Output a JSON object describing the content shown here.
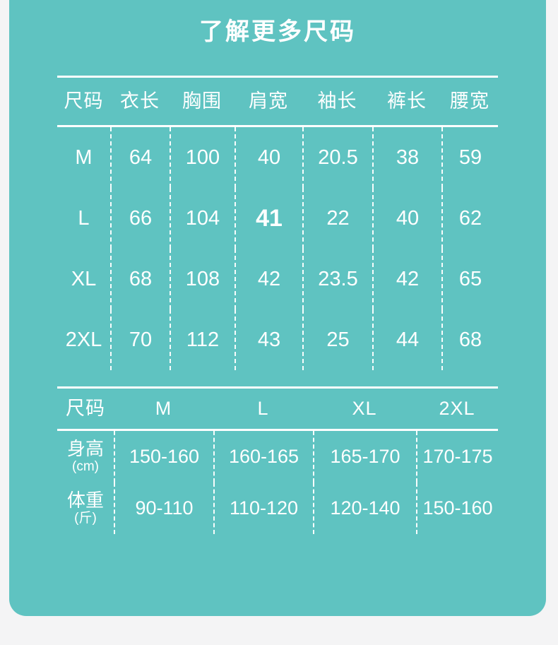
{
  "title": "了解更多尺码",
  "colors": {
    "panel_background": "#5FC3C1",
    "page_background": "#F4F4F5",
    "text": "#FFFFFF",
    "divider": "#FFFFFF"
  },
  "chart_data": [
    {
      "type": "table",
      "title": "了解更多尺码",
      "columns": [
        "尺码",
        "衣长",
        "胸围",
        "肩宽",
        "袖长",
        "裤长",
        "腰宽"
      ],
      "rows": [
        [
          "M",
          "64",
          "100",
          "40",
          "20.5",
          "38",
          "59"
        ],
        [
          "L",
          "66",
          "104",
          "41",
          "22",
          "40",
          "62"
        ],
        [
          "XL",
          "68",
          "108",
          "42",
          "23.5",
          "42",
          "65"
        ],
        [
          "2XL",
          "70",
          "112",
          "43",
          "25",
          "44",
          "68"
        ]
      ]
    },
    {
      "type": "table",
      "columns": [
        "尺码",
        "M",
        "L",
        "XL",
        "2XL"
      ],
      "row_headers": [
        {
          "label": "身高",
          "unit": "(cm)"
        },
        {
          "label": "体重",
          "unit": "(斤)"
        }
      ],
      "rows": [
        [
          "150-160",
          "160-165",
          "165-170",
          "170-175"
        ],
        [
          "90-110",
          "110-120",
          "120-140",
          "150-160"
        ]
      ]
    }
  ]
}
